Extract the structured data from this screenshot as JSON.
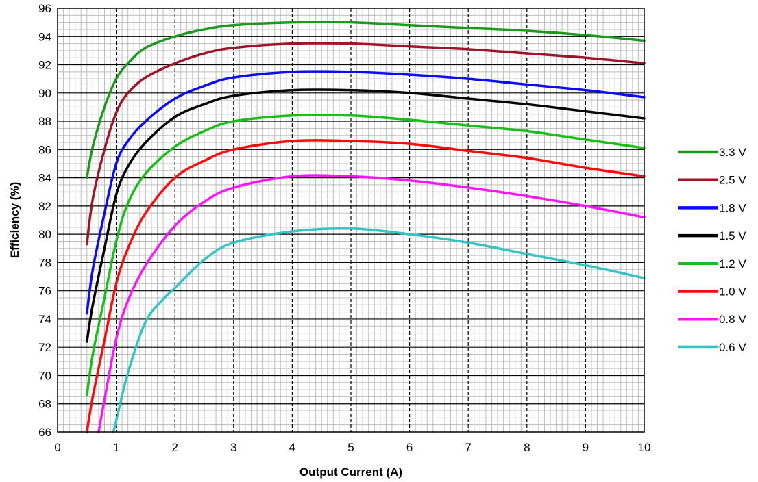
{
  "chart_data": {
    "type": "line",
    "title": "",
    "xlabel": "Output Current (A)",
    "ylabel": "Efficiency (%)",
    "xlim": [
      0,
      10
    ],
    "ylim": [
      66,
      96
    ],
    "x_ticks": [
      0,
      1,
      2,
      3,
      4,
      5,
      6,
      7,
      8,
      9,
      10
    ],
    "y_ticks": [
      66,
      68,
      70,
      72,
      74,
      76,
      78,
      80,
      82,
      84,
      86,
      88,
      90,
      92,
      94,
      96
    ],
    "grid": {
      "major": true,
      "minor": true
    },
    "legend_position": "right",
    "series": [
      {
        "name": "3.3 V",
        "color": "#1a9a1a",
        "x": [
          0.5,
          0.6,
          0.8,
          1.0,
          1.2,
          1.5,
          2.0,
          2.5,
          3.0,
          4.0,
          5.0,
          6.0,
          7.0,
          8.0,
          9.0,
          10.0
        ],
        "y": [
          84.0,
          86.2,
          89.0,
          91.0,
          92.1,
          93.2,
          94.0,
          94.5,
          94.8,
          95.0,
          95.0,
          94.8,
          94.6,
          94.4,
          94.1,
          93.7
        ]
      },
      {
        "name": "2.5 V",
        "color": "#a0142a",
        "x": [
          0.5,
          0.6,
          0.8,
          1.0,
          1.2,
          1.5,
          2.0,
          2.5,
          3.0,
          4.0,
          5.0,
          6.0,
          7.0,
          8.0,
          9.0,
          10.0
        ],
        "y": [
          79.3,
          82.5,
          86.0,
          88.6,
          90.0,
          91.1,
          92.1,
          92.8,
          93.2,
          93.5,
          93.5,
          93.3,
          93.1,
          92.8,
          92.5,
          92.1
        ]
      },
      {
        "name": "1.8 V",
        "color": "#0a0aff",
        "x": [
          0.5,
          0.6,
          0.8,
          1.0,
          1.2,
          1.5,
          2.0,
          2.5,
          3.0,
          4.0,
          5.0,
          6.0,
          7.0,
          8.0,
          9.0,
          10.0
        ],
        "y": [
          74.4,
          77.5,
          81.5,
          85.0,
          86.6,
          88.0,
          89.6,
          90.5,
          91.1,
          91.5,
          91.5,
          91.3,
          91.0,
          90.6,
          90.2,
          89.7
        ]
      },
      {
        "name": "1.5 V",
        "color": "#000000",
        "x": [
          0.5,
          0.6,
          0.8,
          1.0,
          1.2,
          1.5,
          2.0,
          2.5,
          3.0,
          4.0,
          5.0,
          6.0,
          7.0,
          8.0,
          9.0,
          10.0
        ],
        "y": [
          72.4,
          75.0,
          79.0,
          82.8,
          84.8,
          86.5,
          88.3,
          89.2,
          89.8,
          90.2,
          90.2,
          90.0,
          89.6,
          89.2,
          88.7,
          88.2
        ]
      },
      {
        "name": "1.2 V",
        "color": "#16c016",
        "x": [
          0.5,
          0.6,
          0.8,
          1.0,
          1.2,
          1.5,
          2.0,
          2.5,
          3.0,
          4.0,
          5.0,
          6.0,
          7.0,
          8.0,
          9.0,
          10.0
        ],
        "y": [
          68.6,
          71.5,
          75.5,
          79.5,
          82.2,
          84.3,
          86.2,
          87.3,
          88.0,
          88.4,
          88.4,
          88.1,
          87.7,
          87.3,
          86.7,
          86.1
        ]
      },
      {
        "name": "1.0 V",
        "color": "#ff0a0a",
        "x": [
          0.5,
          0.6,
          0.8,
          1.0,
          1.2,
          1.5,
          2.0,
          2.5,
          3.0,
          4.0,
          5.0,
          6.0,
          7.0,
          8.0,
          9.0,
          10.0
        ],
        "y": [
          66.0,
          68.5,
          72.5,
          76.5,
          79.0,
          81.5,
          84.0,
          85.2,
          86.0,
          86.6,
          86.6,
          86.4,
          85.9,
          85.4,
          84.7,
          84.1
        ]
      },
      {
        "name": "0.8 V",
        "color": "#ff14ff",
        "x": [
          0.7,
          0.8,
          1.0,
          1.2,
          1.5,
          2.0,
          2.5,
          3.0,
          4.0,
          5.0,
          6.0,
          7.0,
          8.0,
          9.0,
          10.0
        ],
        "y": [
          66.0,
          68.3,
          72.6,
          75.3,
          77.8,
          80.6,
          82.3,
          83.3,
          84.1,
          84.1,
          83.8,
          83.3,
          82.7,
          82.0,
          81.2
        ]
      },
      {
        "name": "0.6 V",
        "color": "#33c4c4",
        "x": [
          0.95,
          1.0,
          1.2,
          1.5,
          1.8,
          2.0,
          2.5,
          3.0,
          4.0,
          5.0,
          6.0,
          7.0,
          8.0,
          9.0,
          10.0
        ],
        "y": [
          66.0,
          66.8,
          70.2,
          73.8,
          75.4,
          76.2,
          78.2,
          79.4,
          80.2,
          80.4,
          80.0,
          79.4,
          78.6,
          77.8,
          76.9
        ]
      }
    ]
  }
}
